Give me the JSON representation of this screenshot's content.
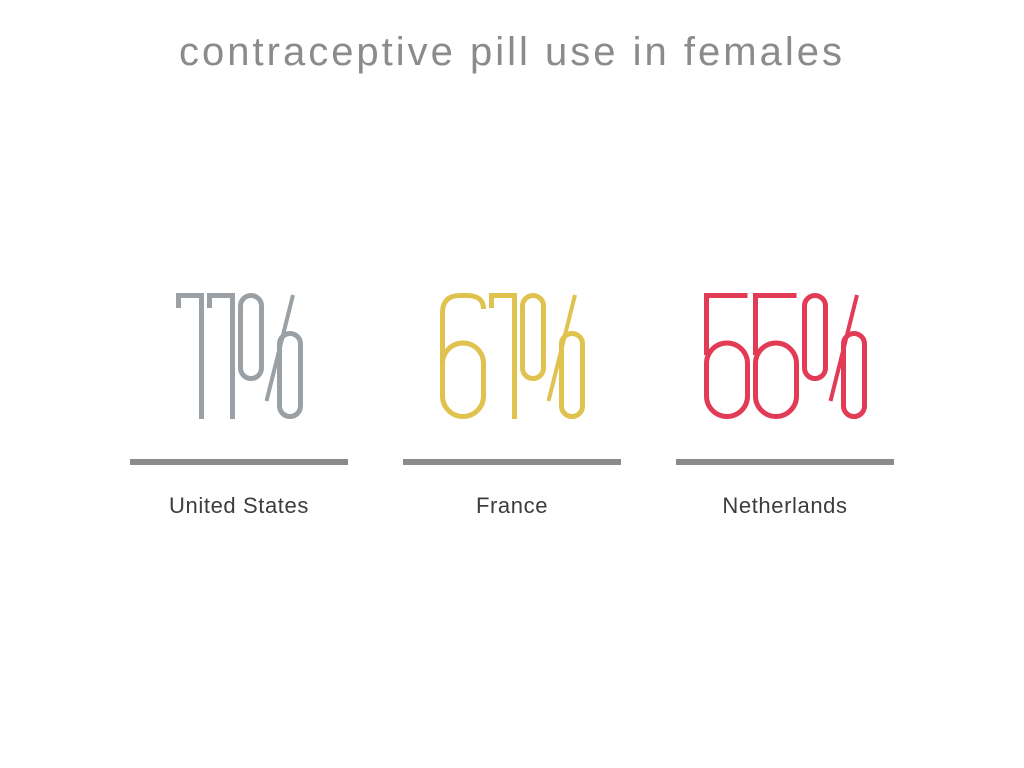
{
  "title": "contraceptive pill use in females",
  "colors": {
    "background": "#ffffff",
    "title_text": "#8b8b8b",
    "divider_line": "#8b8b8b",
    "label_text": "#3c3c3c",
    "stat_gray": "#9aa0a4",
    "stat_gold": "#e0c24f",
    "stat_red": "#e23b55"
  },
  "chart_data": {
    "type": "stat",
    "title": "contraceptive pill use in females",
    "categories": [
      "United States",
      "France",
      "Netherlands"
    ],
    "values": [
      11,
      61,
      55
    ],
    "unit": "%",
    "series_colors": [
      "#9aa0a4",
      "#e0c24f",
      "#e23b55"
    ],
    "legend": "none",
    "layout": "three evenly spaced big-number stats, each above a gray underline and country label"
  },
  "stats": [
    {
      "display": "11%",
      "value": 11,
      "unit": "%",
      "label": "United States",
      "color": "#9aa0a4"
    },
    {
      "display": "61%",
      "value": 61,
      "unit": "%",
      "label": "France",
      "color": "#e0c24f"
    },
    {
      "display": "55%",
      "value": 55,
      "unit": "%",
      "label": "Netherlands",
      "color": "#e23b55"
    }
  ]
}
